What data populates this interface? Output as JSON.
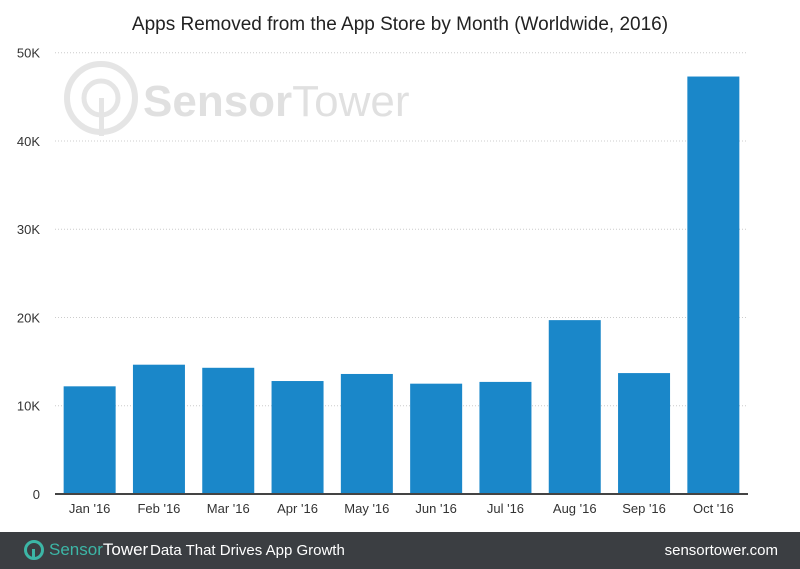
{
  "chart_data": {
    "type": "bar",
    "title": "Apps Removed from the App Store by Month (Worldwide, 2016)",
    "categories": [
      "Jan '16",
      "Feb '16",
      "Mar '16",
      "Apr '16",
      "May '16",
      "Jun '16",
      "Jul '16",
      "Aug '16",
      "Sep '16",
      "Oct '16"
    ],
    "values": [
      12200,
      14650,
      14300,
      12800,
      13600,
      12500,
      12700,
      19700,
      13700,
      47300
    ],
    "ylim": [
      0,
      50000
    ],
    "yticks": [
      0,
      10000,
      20000,
      30000,
      40000,
      50000
    ],
    "ytick_labels": [
      "0",
      "10K",
      "20K",
      "30K",
      "40K",
      "50K"
    ],
    "grid": true,
    "bar_color": "#1a87c9",
    "xlabel": "",
    "ylabel": ""
  },
  "watermark": {
    "text_a": "Sensor",
    "text_b": "Tower"
  },
  "footer": {
    "logo_a": "Sensor",
    "logo_b": "Tower",
    "tagline": "Data That Drives App Growth",
    "url": "sensortower.com",
    "background": "#3b3e42",
    "accent": "#3cb6a6"
  }
}
